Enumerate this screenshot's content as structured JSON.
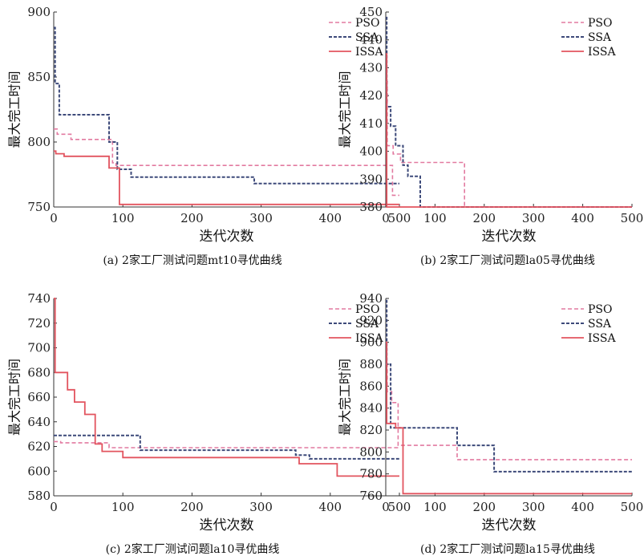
{
  "colors": {
    "PSO": "#e27aa0",
    "SSA": "#3d4a7a",
    "ISSA": "#e2545f"
  },
  "chart_data": [
    {
      "type": "line",
      "caption": "(a) 2家工厂测试问题mt10寻优曲线",
      "xlabel": "迭代次数",
      "ylabel": "最大完工时间",
      "xlim": [
        0,
        500
      ],
      "ylim": [
        750,
        900
      ],
      "xticks": [
        0,
        100,
        200,
        300,
        400,
        500
      ],
      "yticks": [
        750,
        800,
        850,
        900
      ],
      "legend_position": "top-right",
      "series": [
        {
          "name": "PSO",
          "x": [
            0,
            5,
            5,
            25,
            25,
            85,
            85,
            90,
            90,
            490,
            490,
            500
          ],
          "y": [
            810,
            810,
            806,
            806,
            802,
            802,
            784,
            784,
            782,
            782,
            759,
            759
          ]
        },
        {
          "name": "SSA",
          "x": [
            0,
            2,
            2,
            8,
            8,
            80,
            80,
            92,
            92,
            112,
            112,
            290,
            290,
            500
          ],
          "y": [
            888,
            888,
            845,
            845,
            821,
            821,
            800,
            800,
            779,
            779,
            773,
            773,
            768,
            768
          ]
        },
        {
          "name": "ISSA",
          "x": [
            0,
            3,
            3,
            15,
            15,
            80,
            80,
            95,
            95,
            500
          ],
          "y": [
            793,
            793,
            791,
            791,
            789,
            789,
            780,
            780,
            752,
            752
          ]
        }
      ]
    },
    {
      "type": "line",
      "caption": "(b) 2家工厂测试问题la05寻优曲线",
      "xlabel": "迭代次数",
      "ylabel": "最大完工时间",
      "xlim": [
        0,
        500
      ],
      "ylim": [
        380,
        450
      ],
      "xticks": [
        0,
        100,
        200,
        300,
        400,
        500
      ],
      "yticks": [
        380,
        390,
        400,
        410,
        420,
        430,
        440,
        450
      ],
      "legend_position": "top-right",
      "series": [
        {
          "name": "PSO",
          "x": [
            0,
            3,
            3,
            15,
            15,
            30,
            30,
            160,
            160,
            500
          ],
          "y": [
            425,
            425,
            402,
            402,
            399,
            399,
            396,
            396,
            380,
            380
          ]
        },
        {
          "name": "SSA",
          "x": [
            0,
            2,
            2,
            10,
            10,
            20,
            20,
            35,
            35,
            45,
            45,
            70,
            70,
            500
          ],
          "y": [
            448,
            448,
            416,
            416,
            409,
            409,
            402,
            402,
            395,
            395,
            391,
            391,
            380,
            380
          ]
        },
        {
          "name": "ISSA",
          "x": [
            0,
            2,
            2,
            500
          ],
          "y": [
            435,
            435,
            380,
            380
          ]
        }
      ]
    },
    {
      "type": "line",
      "caption": "(c) 2家工厂测试问题la10寻优曲线",
      "xlabel": "迭代次数",
      "ylabel": "最大完工时间",
      "xlim": [
        0,
        500
      ],
      "ylim": [
        580,
        740
      ],
      "xticks": [
        0,
        100,
        200,
        300,
        400,
        500
      ],
      "yticks": [
        580,
        600,
        620,
        640,
        660,
        680,
        700,
        720,
        740
      ],
      "legend_position": "top-right",
      "series": [
        {
          "name": "PSO",
          "x": [
            0,
            10,
            10,
            80,
            80,
            500
          ],
          "y": [
            624,
            624,
            623,
            623,
            619,
            619
          ]
        },
        {
          "name": "SSA",
          "x": [
            0,
            125,
            125,
            350,
            350,
            370,
            370,
            500
          ],
          "y": [
            629,
            629,
            617,
            617,
            613,
            613,
            610,
            610
          ]
        },
        {
          "name": "ISSA",
          "x": [
            0,
            2,
            2,
            20,
            20,
            30,
            30,
            45,
            45,
            60,
            60,
            70,
            70,
            100,
            100,
            355,
            355,
            410,
            410,
            500
          ],
          "y": [
            740,
            740,
            680,
            680,
            666,
            666,
            656,
            656,
            646,
            646,
            622,
            622,
            616,
            616,
            611,
            611,
            606,
            606,
            596,
            596
          ]
        }
      ]
    },
    {
      "type": "line",
      "caption": "(d) 2家工厂测试问题la15寻优曲线",
      "xlabel": "迭代次数",
      "ylabel": "最大完工时间",
      "xlim": [
        0,
        500
      ],
      "ylim": [
        760,
        940
      ],
      "xticks": [
        0,
        100,
        200,
        300,
        400,
        500
      ],
      "yticks": [
        760,
        780,
        800,
        820,
        840,
        860,
        880,
        900,
        920,
        940
      ],
      "legend_position": "top-right",
      "series": [
        {
          "name": "PSO",
          "x": [
            0,
            3,
            3,
            12,
            12,
            25,
            25,
            145,
            145,
            500
          ],
          "y": [
            880,
            880,
            855,
            855,
            845,
            845,
            806,
            806,
            793,
            793
          ]
        },
        {
          "name": "SSA",
          "x": [
            0,
            2,
            2,
            10,
            10,
            145,
            145,
            220,
            220,
            500
          ],
          "y": [
            938,
            938,
            880,
            880,
            822,
            822,
            806,
            806,
            782,
            782
          ]
        },
        {
          "name": "ISSA",
          "x": [
            0,
            2,
            2,
            20,
            20,
            35,
            35,
            500
          ],
          "y": [
            900,
            900,
            826,
            826,
            822,
            822,
            762,
            762
          ]
        }
      ]
    }
  ]
}
